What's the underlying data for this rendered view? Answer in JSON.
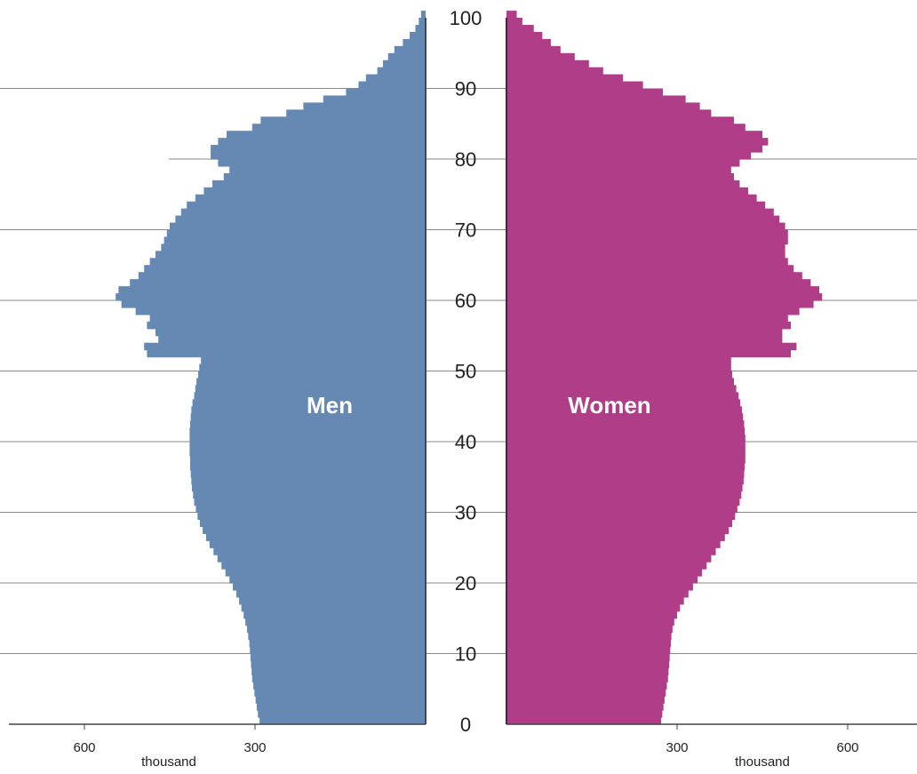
{
  "chart_data": {
    "type": "bar",
    "orientation": "population-pyramid",
    "title": "",
    "colors": {
      "men": "#6689b4",
      "women": "#b03d88",
      "grid": "#888888"
    },
    "y_axis": {
      "lim": [
        0,
        100
      ],
      "ticks": [
        "0",
        "10",
        "20",
        "30",
        "40",
        "50",
        "60",
        "70",
        "80",
        "90",
        "100"
      ]
    },
    "x_axis": {
      "unit": "thousand",
      "men_ticks": [
        "600",
        "300"
      ],
      "women_ticks": [
        "300",
        "600"
      ],
      "lim": [
        0,
        750
      ]
    },
    "ages": [
      0,
      1,
      2,
      3,
      4,
      5,
      6,
      7,
      8,
      9,
      10,
      11,
      12,
      13,
      14,
      15,
      16,
      17,
      18,
      19,
      20,
      21,
      22,
      23,
      24,
      25,
      26,
      27,
      28,
      29,
      30,
      31,
      32,
      33,
      34,
      35,
      36,
      37,
      38,
      39,
      40,
      41,
      42,
      43,
      44,
      45,
      46,
      47,
      48,
      49,
      50,
      51,
      52,
      53,
      54,
      55,
      56,
      57,
      58,
      59,
      60,
      61,
      62,
      63,
      64,
      65,
      66,
      67,
      68,
      69,
      70,
      71,
      72,
      73,
      74,
      75,
      76,
      77,
      78,
      79,
      80,
      81,
      82,
      83,
      84,
      85,
      86,
      87,
      88,
      89,
      90,
      91,
      92,
      93,
      94,
      95,
      96,
      97,
      98,
      99,
      100
    ],
    "series": [
      {
        "name": "Men",
        "values": [
          292,
          295,
          297,
          299,
          301,
          303,
          305,
          306,
          307,
          308,
          309,
          310,
          312,
          314,
          317,
          320,
          324,
          328,
          333,
          339,
          345,
          352,
          359,
          366,
          373,
          380,
          386,
          392,
          397,
          401,
          404,
          407,
          409,
          411,
          412,
          413,
          414,
          414,
          415,
          415,
          415,
          415,
          414,
          413,
          412,
          410,
          407,
          405,
          403,
          400,
          398,
          395,
          490,
          495,
          470,
          475,
          490,
          485,
          510,
          535,
          545,
          540,
          520,
          505,
          495,
          485,
          475,
          465,
          460,
          455,
          450,
          440,
          430,
          420,
          405,
          390,
          375,
          355,
          345,
          365,
          378,
          378,
          365,
          350,
          305,
          290,
          245,
          215,
          180,
          140,
          118,
          105,
          85,
          75,
          66,
          55,
          40,
          28,
          18,
          12,
          8
        ],
        "label": "Men"
      },
      {
        "name": "Women",
        "values": [
          272,
          274,
          276,
          278,
          280,
          282,
          284,
          285,
          286,
          287,
          288,
          289,
          290,
          292,
          295,
          300,
          305,
          312,
          320,
          328,
          336,
          344,
          352,
          360,
          368,
          376,
          384,
          391,
          397,
          402,
          406,
          410,
          413,
          415,
          417,
          418,
          419,
          420,
          420,
          420,
          420,
          419,
          418,
          416,
          414,
          411,
          408,
          404,
          400,
          397,
          395,
          395,
          500,
          510,
          485,
          485,
          500,
          495,
          515,
          540,
          555,
          550,
          535,
          520,
          505,
          495,
          490,
          490,
          495,
          495,
          490,
          480,
          470,
          455,
          440,
          425,
          410,
          400,
          395,
          410,
          430,
          450,
          460,
          450,
          420,
          400,
          360,
          340,
          315,
          275,
          240,
          205,
          170,
          145,
          120,
          95,
          78,
          63,
          48,
          28,
          18
        ],
        "label": "Women"
      }
    ]
  }
}
